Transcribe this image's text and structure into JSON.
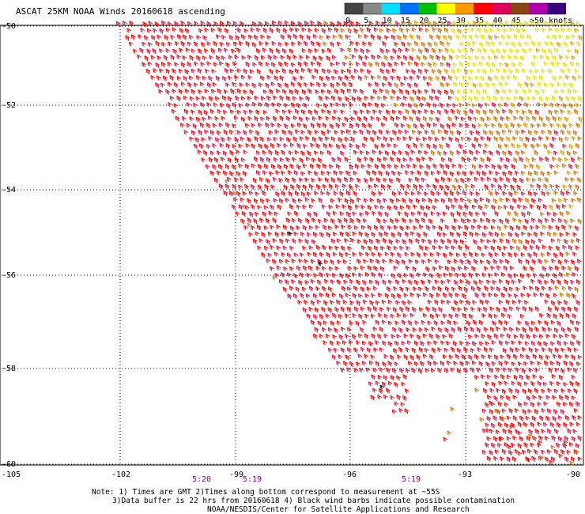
{
  "title": "ASCAT 25KM NOAA Winds 20160618 ascending",
  "legend": {
    "labels": [
      "0",
      "5",
      "10",
      "15",
      "20",
      "25",
      "30",
      "35",
      "40",
      "45",
      ">50 knots"
    ],
    "colors": [
      "#444444",
      "#888888",
      "#00e0ff",
      "#0070ff",
      "#00c000",
      "#ffff00",
      "#ff9900",
      "#ff0000",
      "#e00060",
      "#8b4513",
      "#b000b0",
      "#3b0080"
    ]
  },
  "axes": {
    "lat_labels": [
      "-50",
      "-52",
      "-54",
      "-56",
      "-58",
      "-60"
    ],
    "lon_labels": [
      "-105",
      "-102",
      "-99",
      "-96",
      "-93",
      "-90"
    ]
  },
  "times": [
    "5:20",
    "5:19",
    "5:19"
  ],
  "notes": {
    "line1": "Note: 1) Times are GMT 2)Times along bottom correspond to measurement at ~55S",
    "line2": "3)Data buffer is 22 hrs from 20160618 4) Black wind barbs indicate possible contamination",
    "line3": "NOAA/NESDIS/Center for Satellite Applications and Research"
  },
  "wind_colors": {
    "strong": "#ff0000",
    "crimson": "#e0103a",
    "orange": "#d07000",
    "gold": "#d9a000",
    "yellow": "#e8e000",
    "olive": "#b08040",
    "contaminated": "#000000"
  }
}
